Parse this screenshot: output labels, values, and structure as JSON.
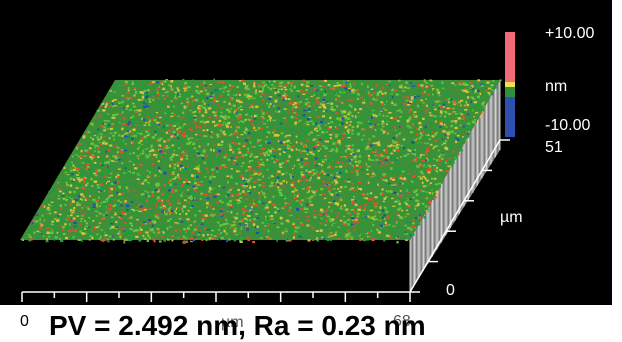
{
  "colorbar": {
    "max_label": "+10.00",
    "unit_label": "nm",
    "min_label": "-10.00",
    "colors": [
      "#f26a78",
      "#f2e14a",
      "#2f8f3a",
      "#2e4fb0"
    ]
  },
  "axes": {
    "side_max": "51",
    "side_unit": "µm",
    "side_zero": "0",
    "bottom_zero": "0",
    "bottom_unit": "µm",
    "bottom_max": "68"
  },
  "caption": "PV = 2.492 nm, Ra = 0.23 nm",
  "surface_colors": [
    "#1e9e3a",
    "#6fc23a",
    "#d9c43a",
    "#e0532e",
    "#1f4fb5"
  ]
}
